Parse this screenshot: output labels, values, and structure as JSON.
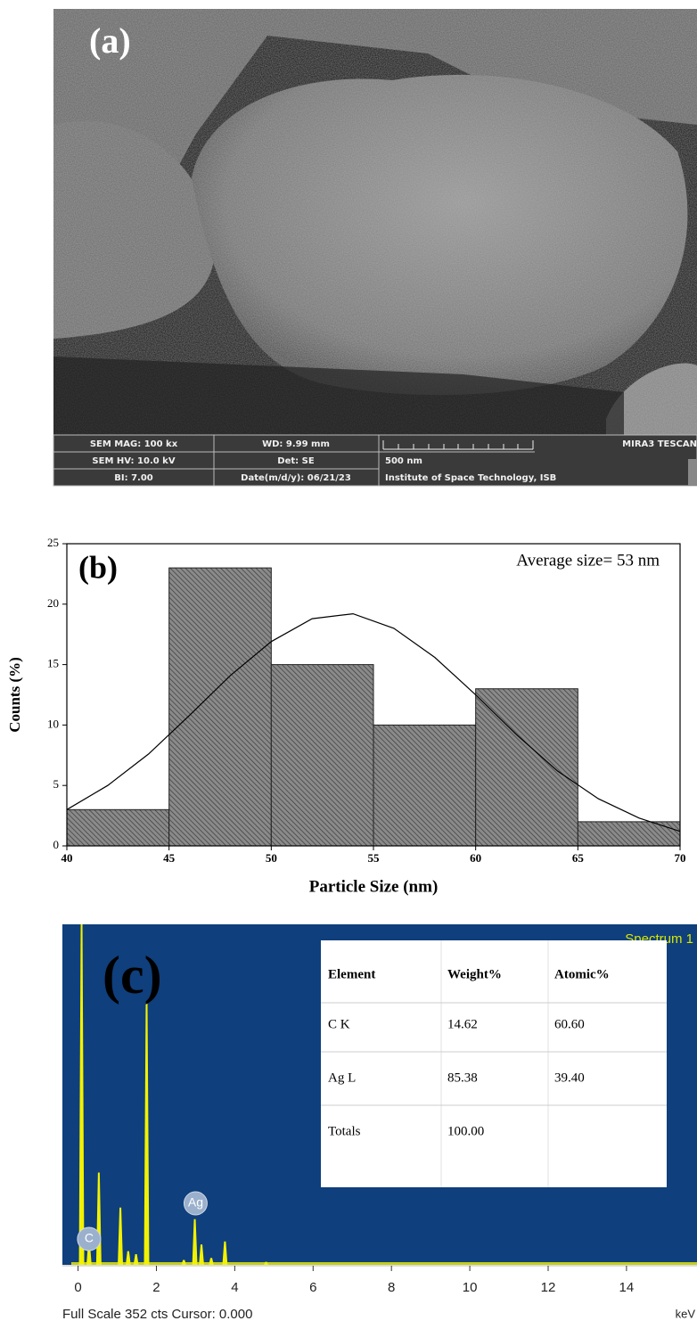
{
  "panel_a": {
    "label": "(a)",
    "info": {
      "mag": "SEM MAG: 100 kx",
      "wd": "WD: 9.99 mm",
      "brand": "MIRA3 TESCAN",
      "hv": "SEM HV: 10.0 kV",
      "det": "Det: SE",
      "scale": "500 nm",
      "bi": "BI: 7.00",
      "date": "Date(m/d/y): 06/21/23",
      "institute": "Institute of Space Technology, ISB"
    }
  },
  "chart_data": [
    {
      "type": "histogram",
      "title": "(b)",
      "annotation": "Average size= 53 nm",
      "xlabel": "Particle Size (nm)",
      "ylabel": "Counts (%)",
      "bins": [
        40,
        45,
        50,
        55,
        60,
        65,
        70
      ],
      "values": [
        3,
        23,
        15,
        10,
        13,
        2
      ],
      "color": "#7d7d7d",
      "xlim": [
        40,
        70
      ],
      "ylim": [
        0,
        25
      ],
      "xticks": [
        40,
        45,
        50,
        55,
        60,
        65,
        70
      ],
      "yticks": [
        0,
        5,
        10,
        15,
        20,
        25
      ],
      "fit": {
        "x": [
          40,
          42,
          44,
          46,
          48,
          50,
          52,
          54,
          56,
          58,
          60,
          62,
          64,
          66,
          68,
          70
        ],
        "values": [
          3.0,
          5.0,
          7.6,
          10.8,
          14.1,
          16.9,
          18.8,
          19.2,
          18.0,
          15.6,
          12.5,
          9.2,
          6.2,
          3.9,
          2.3,
          1.2
        ]
      }
    },
    {
      "type": "spectrum",
      "title": "(c)",
      "label": "Spectrum 1",
      "xlabel": "keV",
      "footer": "Full Scale 352 cts Cursor: 0.000",
      "x": [
        0.09,
        0.28,
        0.53,
        1.08,
        1.28,
        1.48,
        1.75,
        2.7,
        2.98,
        3.15,
        3.4,
        3.75,
        4.8
      ],
      "values": [
        352,
        23,
        96,
        60,
        15,
        12,
        271,
        6,
        48,
        22,
        8,
        25,
        4
      ],
      "color": "#f2f200",
      "background": "#0f3f7c",
      "xlim": [
        -0.4,
        15.8
      ],
      "ylim": [
        0,
        352
      ],
      "xticks": [
        0,
        2,
        4,
        6,
        8,
        10,
        12,
        14
      ],
      "peak_labels": [
        {
          "text": "C",
          "x": 0.28
        },
        {
          "text": "Ag",
          "x": 3.0
        }
      ],
      "table": {
        "header": [
          "Element",
          "Weight%",
          "Atomic%"
        ],
        "rows": [
          [
            "C K",
            "14.62",
            "60.60"
          ],
          [
            "Ag L",
            "85.38",
            "39.40"
          ],
          [
            "Totals",
            "100.00"
          ]
        ]
      }
    }
  ]
}
